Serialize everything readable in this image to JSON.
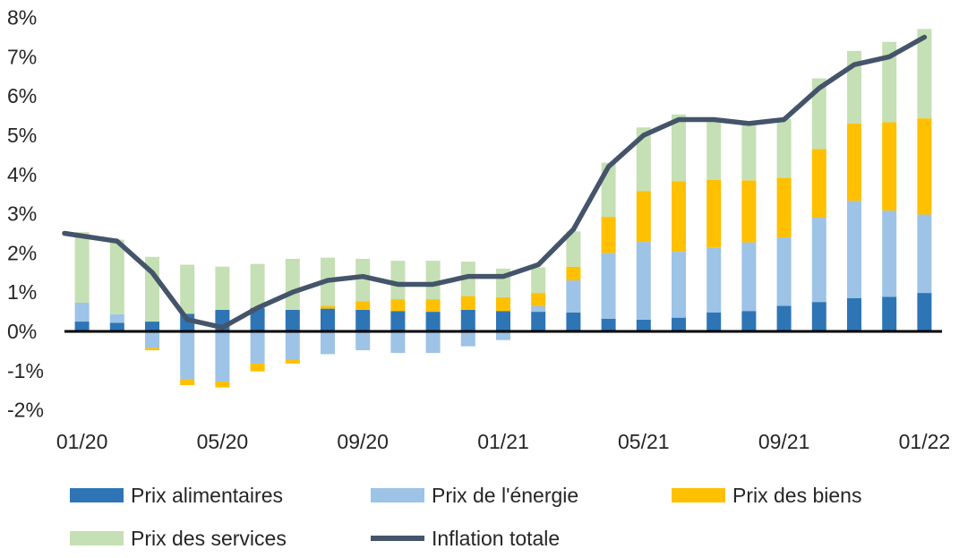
{
  "chart_data": {
    "type": "bar",
    "stacked": true,
    "ylim": [
      -2.5,
      8
    ],
    "yticks": [
      8,
      7,
      6,
      5,
      4,
      3,
      2,
      1,
      0,
      -1,
      -2
    ],
    "ytick_labels": [
      "8%",
      "7%",
      "6%",
      "5%",
      "4%",
      "3%",
      "2%",
      "1%",
      "0%",
      "-1%",
      "-2%"
    ],
    "categories": [
      "01/20",
      "02/20",
      "03/20",
      "04/20",
      "05/20",
      "06/20",
      "07/20",
      "08/20",
      "09/20",
      "10/20",
      "11/20",
      "12/20",
      "01/21",
      "02/21",
      "03/21",
      "04/21",
      "05/21",
      "06/21",
      "07/21",
      "08/21",
      "09/21",
      "10/21",
      "11/21",
      "12/21",
      "01/22"
    ],
    "xtick_labels": [
      {
        "index": 0,
        "label": "01/20"
      },
      {
        "index": 4,
        "label": "05/20"
      },
      {
        "index": 8,
        "label": "09/20"
      },
      {
        "index": 12,
        "label": "01/21"
      },
      {
        "index": 16,
        "label": "05/21"
      },
      {
        "index": 20,
        "label": "09/21"
      },
      {
        "index": 24,
        "label": "01/22"
      }
    ],
    "series": [
      {
        "name": "Prix alimentaires",
        "color": "#2E75B6",
        "kind": "bar",
        "values": [
          0.25,
          0.22,
          0.25,
          0.45,
          0.55,
          0.6,
          0.55,
          0.58,
          0.55,
          0.52,
          0.5,
          0.55,
          0.52,
          0.5,
          0.48,
          0.32,
          0.3,
          0.35,
          0.48,
          0.52,
          0.65,
          0.75,
          0.85,
          0.88,
          0.98
        ]
      },
      {
        "name": "Prix de l'énergie",
        "color": "#9DC3E6",
        "kind": "bar",
        "values": [
          0.48,
          0.22,
          -0.42,
          -1.22,
          -1.28,
          -0.82,
          -0.72,
          -0.58,
          -0.48,
          -0.55,
          -0.55,
          -0.38,
          -0.22,
          0.15,
          0.82,
          1.68,
          1.98,
          1.68,
          1.65,
          1.75,
          1.75,
          2.15,
          2.48,
          2.2,
          2.0
        ]
      },
      {
        "name": "Prix des biens",
        "color": "#FFC000",
        "kind": "bar",
        "values": [
          0.0,
          0.0,
          -0.06,
          -0.15,
          -0.15,
          -0.2,
          -0.1,
          0.07,
          0.22,
          0.3,
          0.32,
          0.35,
          0.35,
          0.33,
          0.35,
          0.92,
          1.3,
          1.8,
          1.73,
          1.58,
          1.52,
          1.75,
          1.97,
          2.25,
          2.45
        ]
      },
      {
        "name": "Prix des services",
        "color": "#C5E0B4",
        "kind": "bar",
        "values": [
          1.8,
          1.9,
          1.65,
          1.25,
          1.1,
          1.12,
          1.3,
          1.23,
          1.08,
          0.98,
          0.98,
          0.88,
          0.73,
          0.65,
          0.9,
          1.38,
          1.62,
          1.7,
          1.5,
          1.45,
          1.5,
          1.8,
          1.85,
          2.05,
          2.28
        ]
      },
      {
        "name": "Inflation totale",
        "color": "#44546A",
        "kind": "line",
        "values": [
          2.5,
          2.3,
          1.5,
          0.3,
          0.1,
          0.6,
          1.0,
          1.3,
          1.4,
          1.2,
          1.2,
          1.4,
          1.4,
          1.7,
          2.6,
          4.2,
          5.0,
          5.4,
          5.4,
          5.3,
          5.4,
          6.2,
          6.8,
          7.0,
          7.5
        ]
      }
    ],
    "legend": {
      "position": "bottom"
    }
  }
}
